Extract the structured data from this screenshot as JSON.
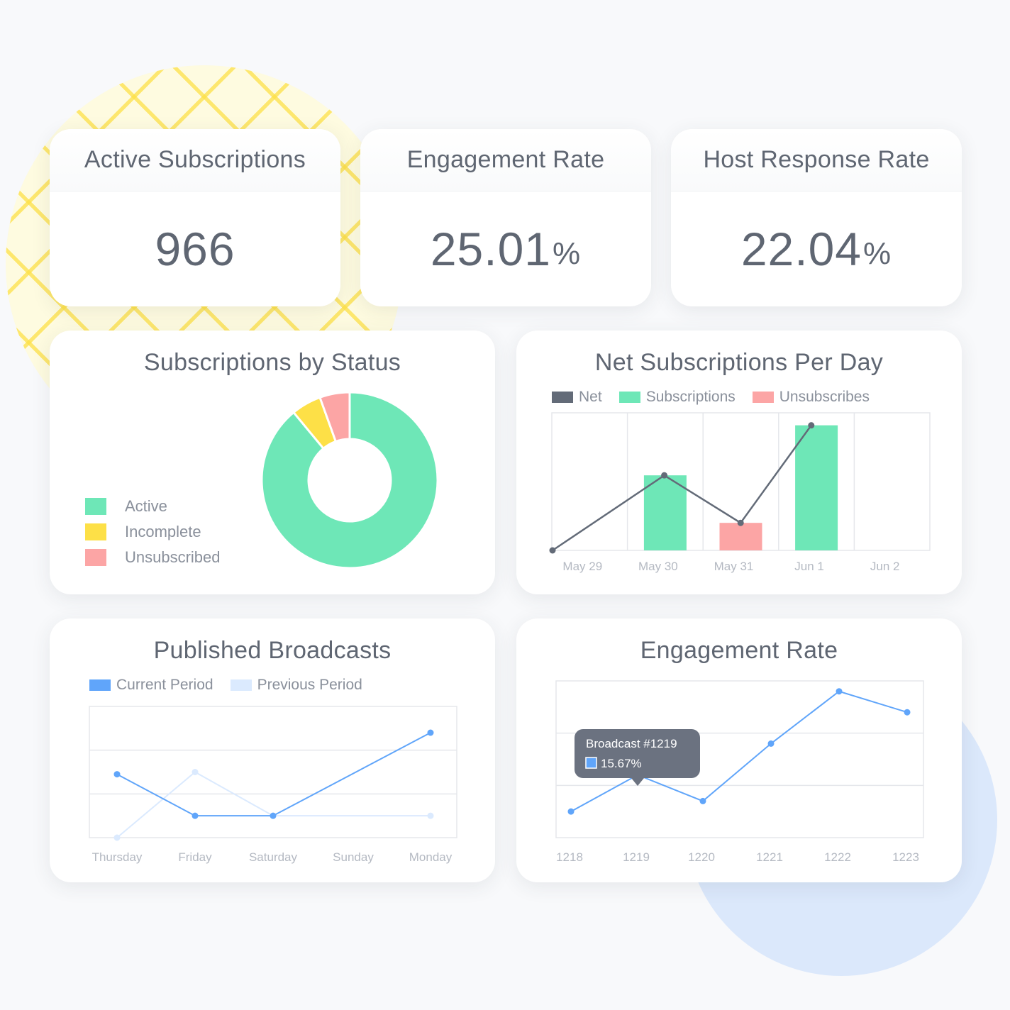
{
  "stats": [
    {
      "title": "Active Subscriptions",
      "value": "966",
      "unit": ""
    },
    {
      "title": "Engagement Rate",
      "value": "25.01",
      "unit": "%"
    },
    {
      "title": "Host Response Rate",
      "value": "22.04",
      "unit": "%"
    }
  ],
  "colors": {
    "active": "#6ee7b7",
    "incomplete": "#fde047",
    "unsubscribed": "#fca5a5",
    "net": "#636b78",
    "current": "#60a5fa",
    "previous": "#dbeafe"
  },
  "chart_data": [
    {
      "type": "pie",
      "title": "Subscriptions by Status",
      "donut": true,
      "legend_position": "left",
      "labels": [
        "Active",
        "Incomplete",
        "Unsubscribed"
      ],
      "values": [
        89,
        5.5,
        5.5
      ]
    },
    {
      "type": "bar",
      "title": "Net Subscriptions Per Day",
      "categories": [
        "May 29",
        "May 30",
        "May 31",
        "Jun 1",
        "Jun 2"
      ],
      "legend": [
        "Net",
        "Subscriptions",
        "Unsubscribes"
      ],
      "legend_position": "top-left",
      "series": [
        {
          "name": "Subscriptions",
          "values": [
            0,
            3,
            0,
            5,
            0
          ]
        },
        {
          "name": "Unsubscribes",
          "values": [
            0,
            0,
            1.1,
            0,
            0
          ]
        },
        {
          "name": "Net",
          "type": "line",
          "values": [
            0,
            3,
            1.1,
            5,
            null
          ]
        }
      ],
      "ylim": [
        0,
        5.5
      ],
      "grid": true
    },
    {
      "type": "line",
      "title": "Published Broadcasts",
      "categories": [
        "Thursday",
        "Friday",
        "Saturday",
        "Sunday",
        "Monday"
      ],
      "legend": [
        "Current Period",
        "Previous Period"
      ],
      "legend_position": "top-left",
      "series": [
        {
          "name": "Current Period",
          "x": [
            0,
            1,
            2,
            4
          ],
          "values": [
            1.45,
            0.5,
            0.5,
            2.4
          ]
        },
        {
          "name": "Previous Period",
          "x": [
            0,
            1,
            2,
            4
          ],
          "values": [
            0,
            1.5,
            0.5,
            0.5
          ]
        }
      ],
      "ylim": [
        0,
        3
      ],
      "grid": true
    },
    {
      "type": "line",
      "title": "Engagement Rate",
      "categories": [
        "1218",
        "1219",
        "1220",
        "1221",
        "1222",
        "1223"
      ],
      "series": [
        {
          "values": [
            0.5,
            1.2,
            0.7,
            1.8,
            2.8,
            2.4
          ]
        }
      ],
      "ylim": [
        0,
        3
      ],
      "grid": true,
      "tooltip": {
        "index": 1,
        "title": "Broadcast #1219",
        "value": "15.67%"
      }
    }
  ]
}
